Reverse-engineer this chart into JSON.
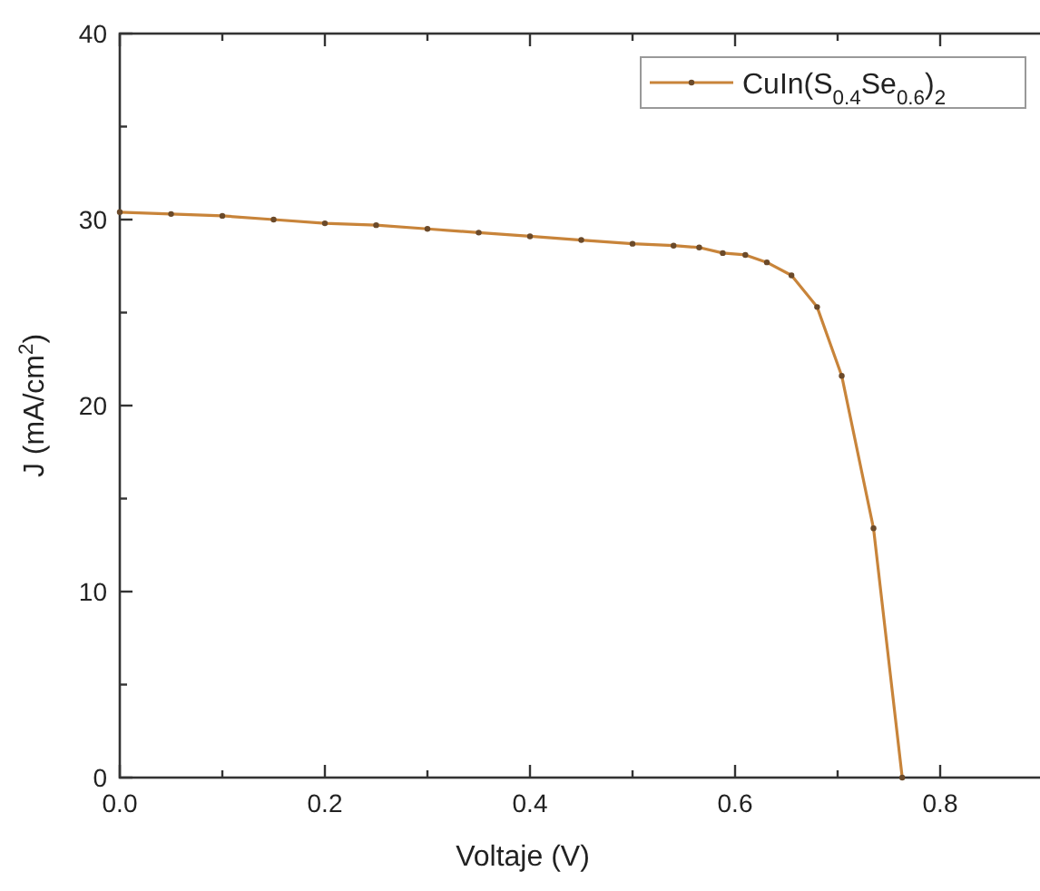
{
  "chart_data": {
    "type": "line",
    "xlabel": "Voltaje (V)",
    "ylabel": "J (mA/cm$^{2}$)",
    "xlim": [
      0,
      0.9
    ],
    "ylim": [
      0,
      40
    ],
    "xticks": [
      {
        "value": 0,
        "label": "0.0"
      },
      {
        "value": 0.1,
        "label": null
      },
      {
        "value": 0.2,
        "label": "0.2"
      },
      {
        "value": 0.3,
        "label": null
      },
      {
        "value": 0.4,
        "label": "0.4"
      },
      {
        "value": 0.5,
        "label": null
      },
      {
        "value": 0.6,
        "label": "0.6"
      },
      {
        "value": 0.7,
        "label": null
      },
      {
        "value": 0.8,
        "label": "0.8"
      }
    ],
    "yticks": [
      0,
      {
        "value": 5,
        "label": null
      },
      10,
      {
        "value": 15,
        "label": null
      },
      20,
      {
        "value": 25,
        "label": null
      },
      30,
      {
        "value": 35,
        "label": null
      },
      40
    ],
    "grid": false,
    "legend": "top right",
    "marker": "circle",
    "line_style": "solid",
    "series": [
      {
        "name": "CuIn(S$_{0.4}$Se$_{0.6}$)$_{2}$",
        "color": "#c8843a",
        "x": [
          0,
          0.05,
          0.1,
          0.15,
          0.2,
          0.25,
          0.3,
          0.35,
          0.4,
          0.45,
          0.5,
          0.54,
          0.565,
          0.588,
          0.61,
          0.631,
          0.655,
          0.68,
          0.704,
          0.735,
          0.763
        ],
        "values": [
          30.4,
          30.3,
          30.2,
          30.0,
          29.8,
          29.7,
          29.5,
          29.3,
          29.1,
          28.9,
          28.7,
          28.6,
          28.5,
          28.2,
          28.1,
          27.7,
          27.0,
          25.3,
          21.6,
          13.4,
          0
        ]
      }
    ]
  }
}
